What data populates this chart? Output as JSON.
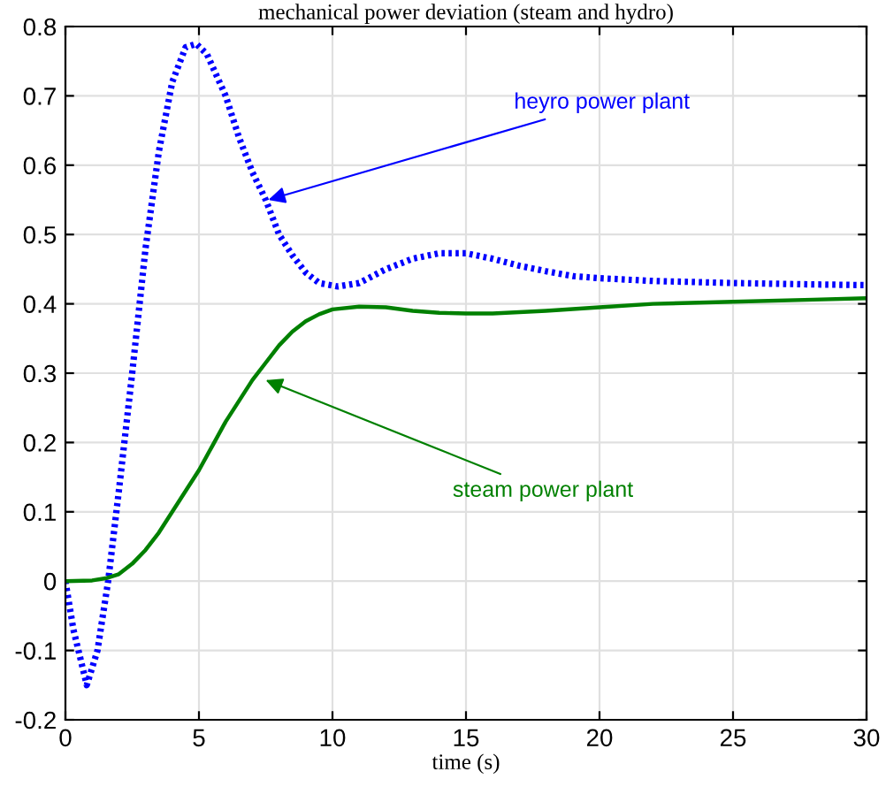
{
  "chart_data": {
    "type": "line",
    "title": "mechanical power deviation (steam and hydro)",
    "xlabel": "time (s)",
    "xlim": [
      0,
      30
    ],
    "xticks": [
      0,
      5,
      10,
      15,
      20,
      25,
      30
    ],
    "ylim": [
      -0.2,
      0.8
    ],
    "yticks": [
      -0.2,
      -0.1,
      0,
      0.1,
      0.2,
      0.3,
      0.4,
      0.5,
      0.6,
      0.7,
      0.8
    ],
    "grid": true,
    "series": [
      {
        "color": "#0000ff",
        "line_style": "dotted",
        "x": [
          0,
          0.3,
          0.8,
          1.2,
          1.6,
          2,
          2.5,
          3,
          3.5,
          4,
          4.5,
          4.9,
          5.3,
          6,
          6.5,
          7,
          7.5,
          8,
          8.5,
          9,
          9.5,
          10.2,
          11,
          12,
          13,
          14,
          15,
          16,
          17,
          18,
          19,
          20,
          22,
          25,
          28,
          30
        ],
        "values": [
          0,
          -0.07,
          -0.15,
          -0.1,
          0,
          0.13,
          0.3,
          0.48,
          0.62,
          0.72,
          0.77,
          0.775,
          0.76,
          0.7,
          0.64,
          0.59,
          0.55,
          0.5,
          0.47,
          0.445,
          0.43,
          0.425,
          0.43,
          0.45,
          0.465,
          0.473,
          0.473,
          0.465,
          0.455,
          0.447,
          0.44,
          0.437,
          0.433,
          0.43,
          0.428,
          0.427
        ]
      },
      {
        "color": "#008000",
        "line_style": "solid",
        "x": [
          0,
          1,
          1.5,
          2,
          2.5,
          3,
          3.5,
          4,
          4.5,
          5,
          5.5,
          6,
          6.5,
          7,
          7.5,
          8,
          8.5,
          9,
          9.5,
          10,
          11,
          12,
          13,
          14,
          15,
          16,
          18,
          20,
          22,
          25,
          28,
          30
        ],
        "values": [
          0,
          0.001,
          0.004,
          0.01,
          0.025,
          0.045,
          0.07,
          0.1,
          0.13,
          0.16,
          0.195,
          0.23,
          0.26,
          0.29,
          0.315,
          0.34,
          0.36,
          0.375,
          0.385,
          0.392,
          0.396,
          0.395,
          0.39,
          0.387,
          0.386,
          0.386,
          0.39,
          0.395,
          0.4,
          0.403,
          0.406,
          0.408
        ]
      }
    ],
    "annotations": [
      {
        "text": "heyro power plant",
        "x": 7.6,
        "y": 0.55
      },
      {
        "text": "steam power plant",
        "x": 7.5,
        "y": 0.29
      }
    ]
  }
}
